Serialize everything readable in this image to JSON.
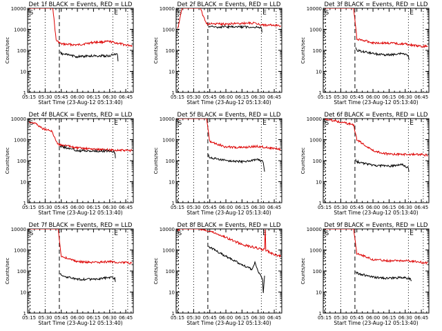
{
  "x_ticks": [
    "05:15",
    "05:30",
    "05:45",
    "06:00",
    "06:15",
    "06:30",
    "06:45"
  ],
  "y_ticks": [
    "1",
    "10",
    "100",
    "1000",
    "10000"
  ],
  "ylabel": "Counts/sec",
  "xlabel_prefix": "Start Time",
  "colors": {
    "events": "#000000",
    "lld": "#dd0000",
    "axis": "#000000"
  },
  "chart_data": [
    {
      "type": "line",
      "title": "Det 1f BLACK = Events, RED = LLD",
      "xlabel": "Start Time (23-Aug-12 05:13:40)",
      "ylabel": "Counts/sec",
      "ylim": [
        1,
        10000
      ],
      "log_y": true,
      "markers": [
        "S",
        "E"
      ],
      "lld": [
        [
          5.25,
          10000
        ],
        [
          5.62,
          10000
        ],
        [
          5.67,
          300
        ],
        [
          5.75,
          200
        ],
        [
          6.0,
          180
        ],
        [
          6.25,
          240
        ],
        [
          6.5,
          260
        ],
        [
          6.75,
          180
        ],
        [
          6.85,
          170
        ]
      ],
      "events": [
        [
          5.73,
          80
        ],
        [
          5.75,
          70
        ],
        [
          6.0,
          50
        ],
        [
          6.25,
          55
        ],
        [
          6.5,
          55
        ],
        [
          6.62,
          70
        ],
        [
          6.63,
          30
        ]
      ]
    },
    {
      "type": "line",
      "title": "Det 2f BLACK = Events, RED = LLD",
      "xlabel": "Start Time (23-Aug-12 05:13:40)",
      "ylabel": "Counts/sec",
      "ylim": [
        1,
        10000
      ],
      "log_y": true,
      "markers": [
        "S",
        "E"
      ],
      "lld": [
        [
          5.25,
          1000
        ],
        [
          5.32,
          10000
        ],
        [
          5.6,
          10000
        ],
        [
          5.7,
          1800
        ],
        [
          6.0,
          1800
        ],
        [
          6.4,
          2000
        ],
        [
          6.6,
          1600
        ],
        [
          6.85,
          1500
        ]
      ],
      "events": [
        [
          5.73,
          1300
        ],
        [
          6.0,
          1300
        ],
        [
          6.25,
          1300
        ],
        [
          6.5,
          1250
        ],
        [
          6.55,
          1300
        ],
        [
          6.56,
          700
        ]
      ]
    },
    {
      "type": "line",
      "title": "Det 3f BLACK = Events, RED = LLD",
      "xlabel": "Start Time (23-Aug-12 05:13:40)",
      "ylabel": "Counts/sec",
      "ylim": [
        1,
        10000
      ],
      "log_y": true,
      "markers": [
        "S",
        "E"
      ],
      "lld": [
        [
          5.25,
          10000
        ],
        [
          5.7,
          10000
        ],
        [
          5.75,
          350
        ],
        [
          6.0,
          230
        ],
        [
          6.25,
          220
        ],
        [
          6.5,
          200
        ],
        [
          6.75,
          150
        ],
        [
          6.85,
          160
        ]
      ],
      "events": [
        [
          5.73,
          130
        ],
        [
          5.75,
          100
        ],
        [
          6.0,
          70
        ],
        [
          6.25,
          60
        ],
        [
          6.45,
          70
        ],
        [
          6.55,
          55
        ],
        [
          6.56,
          35
        ]
      ]
    },
    {
      "type": "line",
      "title": "Det 4f BLACK = Events, RED = LLD",
      "xlabel": "Start Time (23-Aug-12 05:13:40)",
      "ylabel": "Counts/sec",
      "ylim": [
        1,
        10000
      ],
      "log_y": true,
      "markers": [
        "S",
        "E"
      ],
      "lld": [
        [
          5.25,
          7000
        ],
        [
          5.35,
          6000
        ],
        [
          5.45,
          3500
        ],
        [
          5.6,
          2500
        ],
        [
          5.7,
          600
        ],
        [
          6.0,
          400
        ],
        [
          6.25,
          350
        ],
        [
          6.5,
          320
        ],
        [
          6.85,
          300
        ]
      ],
      "events": [
        [
          5.73,
          500
        ],
        [
          6.0,
          300
        ],
        [
          6.25,
          280
        ],
        [
          6.5,
          290
        ],
        [
          6.58,
          260
        ],
        [
          6.59,
          130
        ]
      ]
    },
    {
      "type": "line",
      "title": "Det 5f BLACK = Events, RED = LLD",
      "xlabel": "Start Time (23-Aug-12 05:13:40)",
      "ylabel": "Counts/sec",
      "ylim": [
        1,
        10000
      ],
      "log_y": true,
      "markers": [
        "S",
        "E"
      ],
      "lld": [
        [
          5.25,
          10000
        ],
        [
          5.7,
          10000
        ],
        [
          5.75,
          800
        ],
        [
          6.0,
          450
        ],
        [
          6.25,
          420
        ],
        [
          6.5,
          480
        ],
        [
          6.75,
          380
        ],
        [
          6.85,
          350
        ]
      ],
      "events": [
        [
          5.73,
          180
        ],
        [
          5.75,
          140
        ],
        [
          6.0,
          100
        ],
        [
          6.25,
          90
        ],
        [
          6.5,
          110
        ],
        [
          6.58,
          90
        ],
        [
          6.6,
          30
        ]
      ]
    },
    {
      "type": "line",
      "title": "Det 6f BLACK = Events, RED = LLD",
      "xlabel": "Start Time (23-Aug-12 05:13:40)",
      "ylabel": "Counts/sec",
      "ylim": [
        1,
        10000
      ],
      "log_y": true,
      "markers": [
        "S",
        "E"
      ],
      "lld": [
        [
          5.25,
          10000
        ],
        [
          5.7,
          5000
        ],
        [
          5.75,
          1000
        ],
        [
          6.0,
          300
        ],
        [
          6.25,
          200
        ],
        [
          6.5,
          200
        ],
        [
          6.75,
          200
        ],
        [
          6.85,
          180
        ]
      ],
      "events": [
        [
          5.73,
          120
        ],
        [
          5.75,
          90
        ],
        [
          6.0,
          60
        ],
        [
          6.25,
          55
        ],
        [
          6.45,
          65
        ],
        [
          6.55,
          45
        ],
        [
          6.56,
          30
        ]
      ]
    },
    {
      "type": "line",
      "title": "Det 7f BLACK = Events, RED = LLD",
      "xlabel": "Start Time (23-Aug-12 05:13:40)",
      "ylabel": "Counts/sec",
      "ylim": [
        1,
        10000
      ],
      "log_y": true,
      "markers": [
        "S",
        "E"
      ],
      "lld": [
        [
          5.25,
          10000
        ],
        [
          5.7,
          10000
        ],
        [
          5.75,
          500
        ],
        [
          6.0,
          280
        ],
        [
          6.25,
          250
        ],
        [
          6.5,
          280
        ],
        [
          6.75,
          250
        ],
        [
          6.85,
          230
        ]
      ],
      "events": [
        [
          5.73,
          80
        ],
        [
          5.75,
          60
        ],
        [
          6.0,
          40
        ],
        [
          6.25,
          40
        ],
        [
          6.5,
          50
        ],
        [
          6.58,
          45
        ],
        [
          6.59,
          30
        ]
      ]
    },
    {
      "type": "line",
      "title": "Det 8f BLACK = Events, RED = LLD",
      "xlabel": "Start Time (23-Aug-12 05:13:40)",
      "ylabel": "Counts/sec",
      "ylim": [
        1,
        10000
      ],
      "log_y": true,
      "markers": [
        "S",
        "E"
      ],
      "lld": [
        [
          5.25,
          9000
        ],
        [
          5.3,
          10000
        ],
        [
          5.6,
          10000
        ],
        [
          5.75,
          8000
        ],
        [
          6.0,
          4000
        ],
        [
          6.25,
          1800
        ],
        [
          6.5,
          1200
        ],
        [
          6.6,
          1000
        ],
        [
          6.61,
          10000
        ],
        [
          6.62,
          1000
        ],
        [
          6.75,
          600
        ],
        [
          6.85,
          500
        ]
      ],
      "events": [
        [
          5.73,
          1500
        ],
        [
          6.0,
          500
        ],
        [
          6.25,
          200
        ],
        [
          6.4,
          120
        ],
        [
          6.45,
          250
        ],
        [
          6.5,
          100
        ],
        [
          6.57,
          40
        ],
        [
          6.58,
          8
        ],
        [
          6.6,
          60
        ]
      ]
    },
    {
      "type": "line",
      "title": "Det 9f BLACK = Events, RED = LLD",
      "xlabel": "Start Time (23-Aug-12 05:13:40)",
      "ylabel": "Counts/sec",
      "ylim": [
        1,
        10000
      ],
      "log_y": true,
      "markers": [
        "S",
        "E"
      ],
      "lld": [
        [
          5.25,
          10000
        ],
        [
          5.7,
          10000
        ],
        [
          5.75,
          700
        ],
        [
          6.0,
          350
        ],
        [
          6.25,
          300
        ],
        [
          6.5,
          320
        ],
        [
          6.75,
          260
        ],
        [
          6.85,
          240
        ]
      ],
      "events": [
        [
          5.73,
          100
        ],
        [
          5.75,
          80
        ],
        [
          6.0,
          50
        ],
        [
          6.25,
          45
        ],
        [
          6.5,
          50
        ],
        [
          6.58,
          40
        ],
        [
          6.6,
          35
        ]
      ]
    }
  ]
}
